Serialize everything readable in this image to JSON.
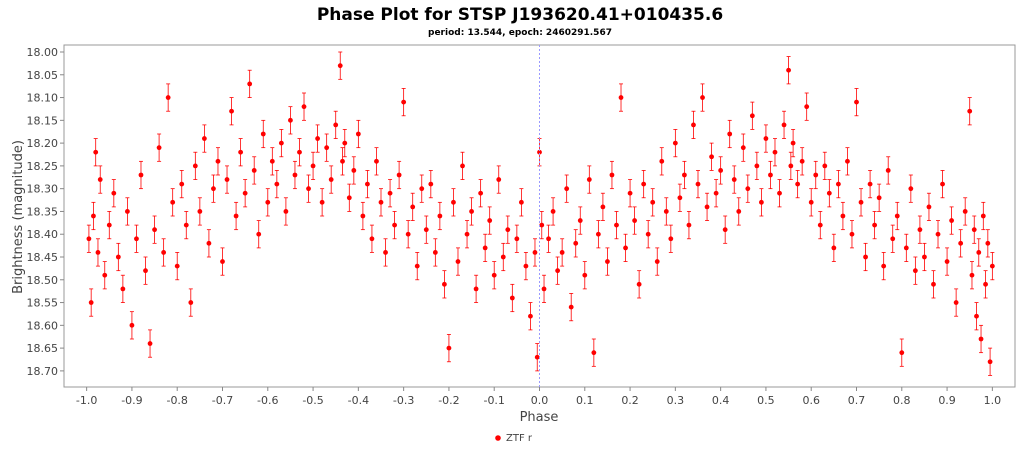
{
  "chart_data": {
    "type": "scatter",
    "title": "Phase Plot for STSP J193620.41+010435.6",
    "subtitle": "period: 13.544, epoch: 2460291.567",
    "xlabel": "Phase",
    "ylabel": "Brightness (magnitude)",
    "xlim": [
      -1.05,
      1.05
    ],
    "ylim": [
      18.0,
      18.72
    ],
    "y_inverted": true,
    "x_ticks": [
      "-1.0",
      "-0.9",
      "-0.8",
      "-0.7",
      "-0.6",
      "-0.5",
      "-0.4",
      "-0.3",
      "-0.2",
      "-0.1",
      "0.0",
      "0.1",
      "0.2",
      "0.3",
      "0.4",
      "0.5",
      "0.6",
      "0.7",
      "0.8",
      "0.9",
      "1.0"
    ],
    "y_ticks": [
      "18.00",
      "18.05",
      "18.10",
      "18.15",
      "18.20",
      "18.25",
      "18.30",
      "18.35",
      "18.40",
      "18.45",
      "18.50",
      "18.55",
      "18.60",
      "18.65",
      "18.70"
    ],
    "grid": false,
    "reference_line_x": 0.0,
    "legend_position": "bottom-center",
    "series": [
      {
        "name": "ZTF r",
        "color": "#ff0000",
        "typical_error": 0.03,
        "points": [
          [
            -0.995,
            18.41
          ],
          [
            -0.99,
            18.55
          ],
          [
            -0.985,
            18.36
          ],
          [
            -0.98,
            18.22
          ],
          [
            -0.975,
            18.44
          ],
          [
            -0.97,
            18.28
          ],
          [
            -0.96,
            18.49
          ],
          [
            -0.95,
            18.38
          ],
          [
            -0.94,
            18.31
          ],
          [
            -0.93,
            18.45
          ],
          [
            -0.92,
            18.52
          ],
          [
            -0.91,
            18.35
          ],
          [
            -0.9,
            18.6
          ],
          [
            -0.89,
            18.41
          ],
          [
            -0.88,
            18.27
          ],
          [
            -0.87,
            18.48
          ],
          [
            -0.86,
            18.64
          ],
          [
            -0.85,
            18.39
          ],
          [
            -0.84,
            18.21
          ],
          [
            -0.83,
            18.44
          ],
          [
            -0.82,
            18.1
          ],
          [
            -0.81,
            18.33
          ],
          [
            -0.8,
            18.47
          ],
          [
            -0.79,
            18.29
          ],
          [
            -0.78,
            18.38
          ],
          [
            -0.77,
            18.55
          ],
          [
            -0.76,
            18.25
          ],
          [
            -0.75,
            18.35
          ],
          [
            -0.74,
            18.19
          ],
          [
            -0.73,
            18.42
          ],
          [
            -0.72,
            18.3
          ],
          [
            -0.71,
            18.24
          ],
          [
            -0.7,
            18.46
          ],
          [
            -0.69,
            18.28
          ],
          [
            -0.68,
            18.13
          ],
          [
            -0.67,
            18.36
          ],
          [
            -0.66,
            18.22
          ],
          [
            -0.65,
            18.31
          ],
          [
            -0.64,
            18.07
          ],
          [
            -0.63,
            18.26
          ],
          [
            -0.62,
            18.4
          ],
          [
            -0.61,
            18.18
          ],
          [
            -0.6,
            18.33
          ],
          [
            -0.59,
            18.24
          ],
          [
            -0.58,
            18.29
          ],
          [
            -0.57,
            18.2
          ],
          [
            -0.56,
            18.35
          ],
          [
            -0.55,
            18.15
          ],
          [
            -0.54,
            18.27
          ],
          [
            -0.53,
            18.22
          ],
          [
            -0.52,
            18.12
          ],
          [
            -0.51,
            18.3
          ],
          [
            -0.5,
            18.25
          ],
          [
            -0.49,
            18.19
          ],
          [
            -0.48,
            18.33
          ],
          [
            -0.47,
            18.21
          ],
          [
            -0.46,
            18.28
          ],
          [
            -0.45,
            18.16
          ],
          [
            -0.44,
            18.03
          ],
          [
            -0.435,
            18.24
          ],
          [
            -0.43,
            18.2
          ],
          [
            -0.42,
            18.32
          ],
          [
            -0.41,
            18.26
          ],
          [
            -0.4,
            18.18
          ],
          [
            -0.39,
            18.36
          ],
          [
            -0.38,
            18.29
          ],
          [
            -0.37,
            18.41
          ],
          [
            -0.36,
            18.24
          ],
          [
            -0.35,
            18.33
          ],
          [
            -0.34,
            18.44
          ],
          [
            -0.33,
            18.31
          ],
          [
            -0.32,
            18.38
          ],
          [
            -0.31,
            18.27
          ],
          [
            -0.3,
            18.11
          ],
          [
            -0.29,
            18.4
          ],
          [
            -0.28,
            18.34
          ],
          [
            -0.27,
            18.47
          ],
          [
            -0.26,
            18.3
          ],
          [
            -0.25,
            18.39
          ],
          [
            -0.24,
            18.29
          ],
          [
            -0.23,
            18.44
          ],
          [
            -0.22,
            18.36
          ],
          [
            -0.21,
            18.51
          ],
          [
            -0.2,
            18.65
          ],
          [
            -0.19,
            18.33
          ],
          [
            -0.18,
            18.46
          ],
          [
            -0.17,
            18.25
          ],
          [
            -0.16,
            18.4
          ],
          [
            -0.15,
            18.35
          ],
          [
            -0.14,
            18.52
          ],
          [
            -0.13,
            18.31
          ],
          [
            -0.12,
            18.43
          ],
          [
            -0.11,
            18.37
          ],
          [
            -0.1,
            18.49
          ],
          [
            -0.09,
            18.28
          ],
          [
            -0.08,
            18.45
          ],
          [
            -0.07,
            18.39
          ],
          [
            -0.06,
            18.54
          ],
          [
            -0.05,
            18.41
          ],
          [
            -0.04,
            18.33
          ],
          [
            -0.03,
            18.47
          ],
          [
            -0.02,
            18.58
          ],
          [
            -0.01,
            18.44
          ],
          [
            -0.005,
            18.67
          ],
          [
            0.0,
            18.22
          ],
          [
            0.005,
            18.38
          ],
          [
            0.01,
            18.52
          ],
          [
            0.02,
            18.41
          ],
          [
            0.03,
            18.35
          ],
          [
            0.04,
            18.48
          ],
          [
            0.05,
            18.44
          ],
          [
            0.06,
            18.3
          ],
          [
            0.07,
            18.56
          ],
          [
            0.08,
            18.42
          ],
          [
            0.09,
            18.37
          ],
          [
            0.1,
            18.49
          ],
          [
            0.11,
            18.28
          ],
          [
            0.12,
            18.66
          ],
          [
            0.13,
            18.4
          ],
          [
            0.14,
            18.34
          ],
          [
            0.15,
            18.46
          ],
          [
            0.16,
            18.27
          ],
          [
            0.17,
            18.38
          ],
          [
            0.18,
            18.1
          ],
          [
            0.19,
            18.43
          ],
          [
            0.2,
            18.31
          ],
          [
            0.21,
            18.37
          ],
          [
            0.22,
            18.51
          ],
          [
            0.23,
            18.29
          ],
          [
            0.24,
            18.4
          ],
          [
            0.25,
            18.33
          ],
          [
            0.26,
            18.46
          ],
          [
            0.27,
            18.24
          ],
          [
            0.28,
            18.35
          ],
          [
            0.29,
            18.41
          ],
          [
            0.3,
            18.2
          ],
          [
            0.31,
            18.32
          ],
          [
            0.32,
            18.27
          ],
          [
            0.33,
            18.38
          ],
          [
            0.34,
            18.16
          ],
          [
            0.35,
            18.29
          ],
          [
            0.36,
            18.1
          ],
          [
            0.37,
            18.34
          ],
          [
            0.38,
            18.23
          ],
          [
            0.39,
            18.31
          ],
          [
            0.4,
            18.26
          ],
          [
            0.41,
            18.39
          ],
          [
            0.42,
            18.18
          ],
          [
            0.43,
            18.28
          ],
          [
            0.44,
            18.35
          ],
          [
            0.45,
            18.21
          ],
          [
            0.46,
            18.3
          ],
          [
            0.47,
            18.14
          ],
          [
            0.48,
            18.25
          ],
          [
            0.49,
            18.33
          ],
          [
            0.5,
            18.19
          ],
          [
            0.51,
            18.27
          ],
          [
            0.52,
            18.22
          ],
          [
            0.53,
            18.31
          ],
          [
            0.54,
            18.16
          ],
          [
            0.55,
            18.04
          ],
          [
            0.555,
            18.25
          ],
          [
            0.56,
            18.2
          ],
          [
            0.57,
            18.29
          ],
          [
            0.58,
            18.24
          ],
          [
            0.59,
            18.12
          ],
          [
            0.6,
            18.33
          ],
          [
            0.61,
            18.27
          ],
          [
            0.62,
            18.38
          ],
          [
            0.63,
            18.25
          ],
          [
            0.64,
            18.31
          ],
          [
            0.65,
            18.43
          ],
          [
            0.66,
            18.29
          ],
          [
            0.67,
            18.36
          ],
          [
            0.68,
            18.24
          ],
          [
            0.69,
            18.4
          ],
          [
            0.7,
            18.11
          ],
          [
            0.71,
            18.33
          ],
          [
            0.72,
            18.45
          ],
          [
            0.73,
            18.29
          ],
          [
            0.74,
            18.38
          ],
          [
            0.75,
            18.32
          ],
          [
            0.76,
            18.47
          ],
          [
            0.77,
            18.26
          ],
          [
            0.78,
            18.41
          ],
          [
            0.79,
            18.36
          ],
          [
            0.8,
            18.66
          ],
          [
            0.81,
            18.43
          ],
          [
            0.82,
            18.3
          ],
          [
            0.83,
            18.48
          ],
          [
            0.84,
            18.39
          ],
          [
            0.85,
            18.45
          ],
          [
            0.86,
            18.34
          ],
          [
            0.87,
            18.51
          ],
          [
            0.88,
            18.4
          ],
          [
            0.89,
            18.29
          ],
          [
            0.9,
            18.46
          ],
          [
            0.91,
            18.37
          ],
          [
            0.92,
            18.55
          ],
          [
            0.93,
            18.42
          ],
          [
            0.94,
            18.35
          ],
          [
            0.95,
            18.13
          ],
          [
            0.955,
            18.49
          ],
          [
            0.96,
            18.39
          ],
          [
            0.965,
            18.58
          ],
          [
            0.97,
            18.44
          ],
          [
            0.975,
            18.63
          ],
          [
            0.98,
            18.36
          ],
          [
            0.985,
            18.51
          ],
          [
            0.99,
            18.42
          ],
          [
            0.995,
            18.68
          ],
          [
            1.0,
            18.47
          ]
        ]
      }
    ]
  }
}
